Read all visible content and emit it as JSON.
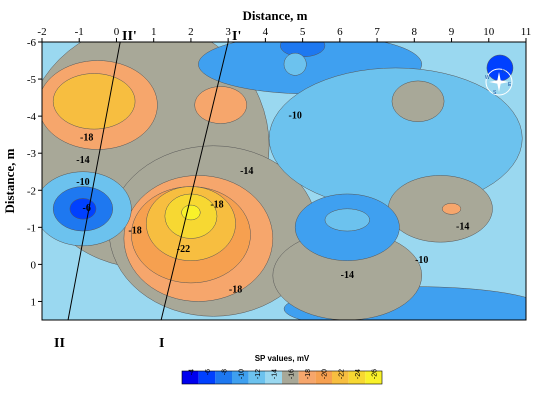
{
  "chart_data": {
    "type": "heatmap",
    "title": "",
    "xlabel": "Distance, m",
    "ylabel": "Distance, m",
    "x_ticks": [
      -2,
      -1,
      0,
      1,
      2,
      3,
      4,
      5,
      6,
      7,
      8,
      9,
      10,
      11
    ],
    "y_ticks": [
      -6,
      -5,
      -4,
      -3,
      -2,
      -1,
      0,
      1
    ],
    "xlim": [
      -2,
      11
    ],
    "ylim": [
      -6,
      1.5
    ],
    "x_axis_position": "top",
    "y_axis_inverted": true,
    "colorbar": {
      "title": "SP values, mV",
      "tick_labels": [
        "-4",
        "-6",
        "-8",
        "-10",
        "-12",
        "-14",
        "-16",
        "-18",
        "-20",
        "-22",
        "-24",
        "-26"
      ],
      "colors": [
        "#0000ee",
        "#0040ff",
        "#1e78f0",
        "#3fa0f0",
        "#6cc2ee",
        "#9ad8f0",
        "#a8a898",
        "#f6a66c",
        "#f6a050",
        "#f7be40",
        "#f7d832",
        "#f9f22a"
      ]
    },
    "contour_labels": [
      {
        "text": "-10",
        "x": 4.8,
        "y": -4.0
      },
      {
        "text": "-14",
        "x": 3.5,
        "y": -2.5
      },
      {
        "text": "-18",
        "x": 2.7,
        "y": -1.6
      },
      {
        "text": "-22",
        "x": 1.8,
        "y": -0.4
      },
      {
        "text": "-18",
        "x": 3.2,
        "y": 0.7
      },
      {
        "text": "-18",
        "x": 0.5,
        "y": -0.9
      },
      {
        "text": "-14",
        "x": 6.2,
        "y": 0.3
      },
      {
        "text": "-10",
        "x": 8.2,
        "y": -0.1
      },
      {
        "text": "-14",
        "x": 9.3,
        "y": -1.0
      },
      {
        "text": "-18",
        "x": -0.8,
        "y": -3.4
      },
      {
        "text": "-14",
        "x": -0.9,
        "y": -2.8
      },
      {
        "text": "-10",
        "x": -0.9,
        "y": -2.2
      },
      {
        "text": "-6",
        "x": -0.8,
        "y": -1.5
      }
    ],
    "regions": [
      {
        "value": -16,
        "cx": 0.8,
        "cy": -3.2,
        "rx": 3.3,
        "ry": 3.3
      },
      {
        "value": -16,
        "cx": 2.6,
        "cy": -0.9,
        "rx": 2.8,
        "ry": 2.3
      },
      {
        "value": -10,
        "cx": 5.2,
        "cy": -5.4,
        "rx": 3.0,
        "ry": 0.8
      },
      {
        "value": -10,
        "cx": 8.0,
        "cy": 1.2,
        "rx": 3.5,
        "ry": 0.6
      },
      {
        "value": -12,
        "cx": 7.5,
        "cy": -3.4,
        "rx": 3.4,
        "ry": 1.9
      },
      {
        "value": -16,
        "cx": 8.7,
        "cy": -1.5,
        "rx": 1.4,
        "ry": 0.9
      },
      {
        "value": -16,
        "cx": 6.2,
        "cy": 0.3,
        "rx": 2.0,
        "ry": 1.2
      },
      {
        "value": -16,
        "cx": 8.1,
        "cy": -4.4,
        "rx": 0.7,
        "ry": 0.55
      },
      {
        "value": -18,
        "cx": -0.5,
        "cy": -4.3,
        "rx": 1.6,
        "ry": 1.2
      },
      {
        "value": -18,
        "cx": 2.2,
        "cy": -0.7,
        "rx": 2.0,
        "ry": 1.7
      },
      {
        "value": -18,
        "cx": 2.8,
        "cy": -4.3,
        "rx": 0.7,
        "ry": 0.5
      },
      {
        "value": -20,
        "cx": 2.0,
        "cy": -0.8,
        "rx": 1.6,
        "ry": 1.3
      },
      {
        "value": -22,
        "cx": -0.6,
        "cy": -4.4,
        "rx": 1.1,
        "ry": 0.75
      },
      {
        "value": -22,
        "cx": 2.0,
        "cy": -1.1,
        "rx": 1.2,
        "ry": 1.0
      },
      {
        "value": -24,
        "cx": 2.0,
        "cy": -1.3,
        "rx": 0.7,
        "ry": 0.6
      },
      {
        "value": -26,
        "cx": 2.0,
        "cy": -1.4,
        "rx": 0.25,
        "ry": 0.2
      },
      {
        "value": -12,
        "cx": -0.9,
        "cy": -1.5,
        "rx": 1.3,
        "ry": 1.0
      },
      {
        "value": -8,
        "cx": -0.9,
        "cy": -1.5,
        "rx": 0.8,
        "ry": 0.6
      },
      {
        "value": -6,
        "cx": -0.9,
        "cy": -1.5,
        "rx": 0.35,
        "ry": 0.28
      },
      {
        "value": -8,
        "cx": 5.0,
        "cy": -5.9,
        "rx": 0.6,
        "ry": 0.3
      },
      {
        "value": -6,
        "cx": 10.3,
        "cy": -5.3,
        "rx": 0.35,
        "ry": 0.35
      },
      {
        "value": -10,
        "cx": 6.2,
        "cy": -1.0,
        "rx": 1.4,
        "ry": 0.9
      },
      {
        "value": -12,
        "cx": 6.2,
        "cy": -1.2,
        "rx": 0.6,
        "ry": 0.3
      },
      {
        "value": -18,
        "cx": 9.0,
        "cy": -1.5,
        "rx": 0.25,
        "ry": 0.15
      },
      {
        "value": -12,
        "cx": 4.8,
        "cy": -5.4,
        "rx": 0.3,
        "ry": 0.3
      }
    ],
    "profiles": [
      {
        "name": "I",
        "x1": 1.2,
        "y1": 1.5,
        "x2": 3.0,
        "y2": -6.0
      },
      {
        "name": "II",
        "x1": -1.3,
        "y1": 1.5,
        "x2": 0.1,
        "y2": -6.0
      }
    ],
    "profile_end_labels": {
      "I_start": "I",
      "I_end": "I'",
      "II_start": "II",
      "II_end": "II'"
    },
    "compass": {
      "letters": [
        "N",
        "E",
        "S",
        "W"
      ]
    }
  }
}
